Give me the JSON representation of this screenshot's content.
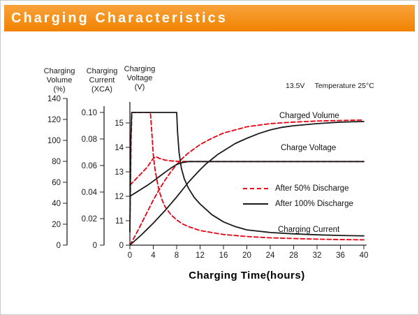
{
  "header": {
    "title": "Charging Characteristics"
  },
  "colors": {
    "banner_top": "#f9a23c",
    "banner_bottom": "#f08300",
    "red": "#e60012",
    "black": "#1a1a1a",
    "axis": "#222222"
  },
  "annotation": {
    "voltage_set": "13.5V",
    "temperature": "Temperature 25°C"
  },
  "axis_titles": {
    "volume": [
      "Charging",
      "Volume",
      "(%)"
    ],
    "current": [
      "Charging",
      "Current",
      "(XCA)"
    ],
    "voltage": [
      "Charging",
      "Voltage",
      "(V)"
    ]
  },
  "x_axis_title": "Charging Time(hours)",
  "curve_labels": {
    "charged_volume": "Charged Volume",
    "charge_voltage": "Charge Voltage",
    "charging_current": "Charging Current"
  },
  "legend": [
    {
      "label": "After 50% Discharge",
      "style": "dashed",
      "color": "red"
    },
    {
      "label": "After 100% Discharge",
      "style": "solid",
      "color": "black"
    }
  ],
  "chart_data": {
    "type": "line",
    "title": "Charging Characteristics",
    "x_axis": {
      "label": "Charging Time(hours)",
      "ticks": [
        0,
        4,
        8,
        12,
        16,
        20,
        24,
        28,
        32,
        36,
        40
      ],
      "range": [
        0,
        40
      ]
    },
    "y_axes": {
      "volume": {
        "label": "Charging Volume (%)",
        "ticks": [
          0,
          20,
          40,
          60,
          80,
          100,
          120,
          140
        ],
        "range": [
          0,
          140
        ]
      },
      "current": {
        "label": "Charging Current (XCA)",
        "tick_labels": [
          "0",
          "0.02",
          "0.04",
          "0.06",
          "0.08",
          "0.10"
        ],
        "range": [
          0,
          0.1105
        ]
      },
      "voltage": {
        "label": "Charging Voltage (V)",
        "ticks": [
          11,
          12,
          13,
          14,
          15
        ],
        "zero_label": "0",
        "range": [
          10,
          16
        ]
      }
    },
    "grid": false,
    "legend_position": "inside-right",
    "series": [
      {
        "name": "charged-volume-after-50",
        "label": "Charged Volume",
        "condition": "After 50% Discharge",
        "axis": "volume",
        "color": "red",
        "style": "dashed",
        "points": [
          [
            0,
            0
          ],
          [
            1,
            10
          ],
          [
            2,
            21
          ],
          [
            3,
            32
          ],
          [
            4,
            43
          ],
          [
            5,
            53
          ],
          [
            6,
            62
          ],
          [
            7,
            70
          ],
          [
            8,
            77
          ],
          [
            9,
            83
          ],
          [
            10,
            88
          ],
          [
            12,
            96
          ],
          [
            14,
            102
          ],
          [
            16,
            107
          ],
          [
            18,
            110
          ],
          [
            20,
            113
          ],
          [
            24,
            116
          ],
          [
            28,
            117.5
          ],
          [
            32,
            118.5
          ],
          [
            36,
            119
          ],
          [
            40,
            119.5
          ]
        ]
      },
      {
        "name": "charge-voltage-after-50",
        "label": "Charge Voltage",
        "condition": "After 50% Discharge",
        "axis": "voltage",
        "color": "red",
        "style": "dashed",
        "points": [
          [
            0,
            12.45
          ],
          [
            1,
            12.7
          ],
          [
            2,
            12.95
          ],
          [
            3,
            13.2
          ],
          [
            3.5,
            13.38
          ],
          [
            4,
            13.55
          ],
          [
            4.5,
            13.62
          ],
          [
            5,
            13.55
          ],
          [
            6,
            13.48
          ],
          [
            7,
            13.45
          ],
          [
            8,
            13.43
          ],
          [
            10,
            13.42
          ],
          [
            40,
            13.42
          ]
        ]
      },
      {
        "name": "charging-current-after-50",
        "label": "Charging Current",
        "condition": "After 50% Discharge",
        "axis": "current",
        "color": "red",
        "style": "dashed",
        "points": [
          [
            0,
            0.01
          ],
          [
            0.2,
            0.08
          ],
          [
            0.35,
            0.1
          ],
          [
            3.5,
            0.1
          ],
          [
            3.8,
            0.082
          ],
          [
            4,
            0.068
          ],
          [
            4.3,
            0.057
          ],
          [
            4.7,
            0.047
          ],
          [
            5,
            0.041
          ],
          [
            5.5,
            0.034
          ],
          [
            6,
            0.029
          ],
          [
            7,
            0.023
          ],
          [
            8,
            0.019
          ],
          [
            9,
            0.016
          ],
          [
            10,
            0.014
          ],
          [
            12,
            0.011
          ],
          [
            14,
            0.0095
          ],
          [
            16,
            0.008
          ],
          [
            20,
            0.0065
          ],
          [
            24,
            0.0055
          ],
          [
            28,
            0.005
          ],
          [
            32,
            0.0045
          ],
          [
            36,
            0.0042
          ],
          [
            40,
            0.004
          ]
        ]
      },
      {
        "name": "charged-volume-after-100",
        "label": "Charged Volume",
        "condition": "After 100% Discharge",
        "axis": "volume",
        "color": "black",
        "style": "solid",
        "points": [
          [
            0,
            0
          ],
          [
            1,
            5
          ],
          [
            2,
            10
          ],
          [
            3,
            15.5
          ],
          [
            4,
            21
          ],
          [
            5,
            27
          ],
          [
            6,
            33
          ],
          [
            7,
            39.5
          ],
          [
            8,
            46
          ],
          [
            9,
            53
          ],
          [
            10,
            60
          ],
          [
            11,
            66
          ],
          [
            12,
            72
          ],
          [
            13,
            77.5
          ],
          [
            14,
            82
          ],
          [
            15,
            86.5
          ],
          [
            16,
            90
          ],
          [
            18,
            97
          ],
          [
            20,
            102
          ],
          [
            22,
            106.5
          ],
          [
            24,
            110
          ],
          [
            26,
            112.5
          ],
          [
            28,
            114
          ],
          [
            32,
            116
          ],
          [
            36,
            117.5
          ],
          [
            40,
            118
          ]
        ]
      },
      {
        "name": "charge-voltage-after-100",
        "label": "Charge Voltage",
        "condition": "After 100% Discharge",
        "axis": "voltage",
        "color": "black",
        "style": "solid",
        "points": [
          [
            0,
            12.0
          ],
          [
            1,
            12.15
          ],
          [
            2,
            12.3
          ],
          [
            3,
            12.45
          ],
          [
            4,
            12.62
          ],
          [
            5,
            12.8
          ],
          [
            6,
            12.98
          ],
          [
            7,
            13.15
          ],
          [
            8,
            13.3
          ],
          [
            9,
            13.38
          ],
          [
            10,
            13.42
          ],
          [
            12,
            13.42
          ],
          [
            40,
            13.42
          ]
        ]
      },
      {
        "name": "charging-current-after-100",
        "label": "Charging Current",
        "condition": "After 100% Discharge",
        "axis": "current",
        "color": "black",
        "style": "solid",
        "points": [
          [
            0,
            0.01
          ],
          [
            0.15,
            0.08
          ],
          [
            0.3,
            0.1
          ],
          [
            8,
            0.1
          ],
          [
            8.15,
            0.085
          ],
          [
            8.4,
            0.07
          ],
          [
            8.8,
            0.058
          ],
          [
            9.3,
            0.05
          ],
          [
            10,
            0.043
          ],
          [
            11,
            0.036
          ],
          [
            12,
            0.031
          ],
          [
            13,
            0.027
          ],
          [
            14,
            0.023
          ],
          [
            16,
            0.0175
          ],
          [
            18,
            0.014
          ],
          [
            20,
            0.0115
          ],
          [
            22,
            0.0105
          ],
          [
            24,
            0.0095
          ],
          [
            28,
            0.0085
          ],
          [
            32,
            0.0078
          ],
          [
            36,
            0.0073
          ],
          [
            40,
            0.007
          ]
        ]
      }
    ]
  }
}
